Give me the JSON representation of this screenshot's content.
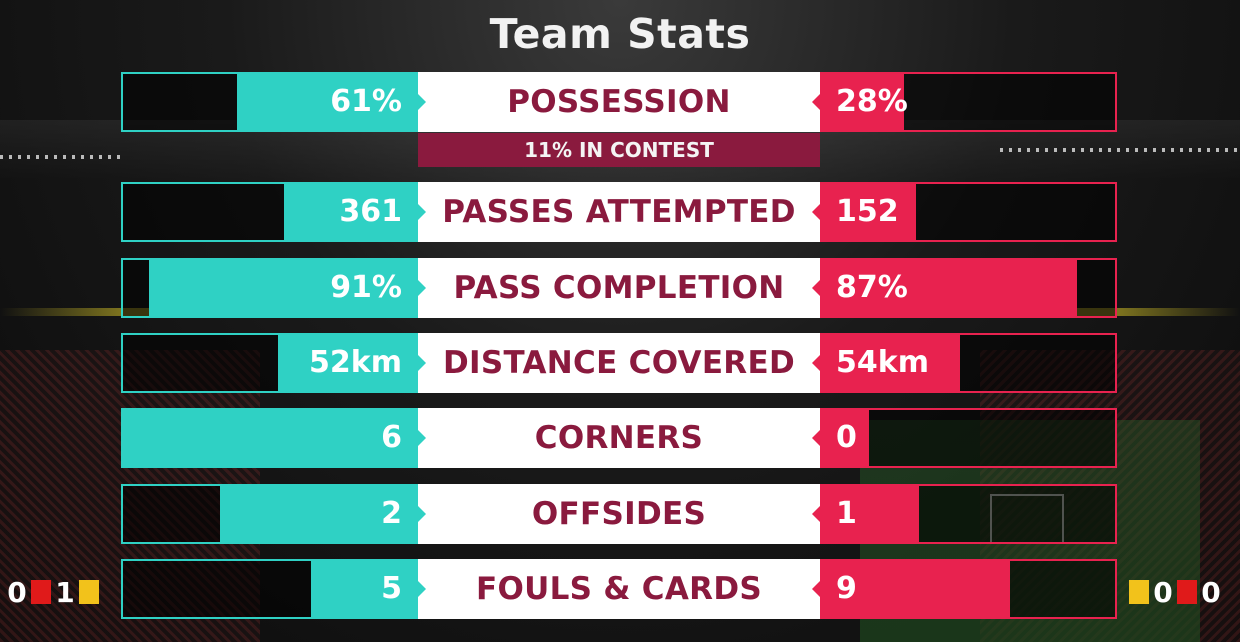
{
  "title": "Team Stats",
  "colors": {
    "home": "#2fd1c4",
    "away": "#e8224f",
    "label_text": "#8a1a3e",
    "contest_bg": "#8a1a3e"
  },
  "stats": [
    {
      "label": "POSSESSION",
      "home_value": "61%",
      "away_value": "28%",
      "home_fill": 0.61,
      "away_fill": 0.28
    },
    {
      "label": "PASSES ATTEMPTED",
      "home_value": "361",
      "away_value": "152",
      "home_fill": 0.45,
      "away_fill": 0.32
    },
    {
      "label": "PASS COMPLETION",
      "home_value": "91%",
      "away_value": "87%",
      "home_fill": 0.91,
      "away_fill": 0.87
    },
    {
      "label": "DISTANCE COVERED",
      "home_value": "52km",
      "away_value": "54km",
      "home_fill": 0.47,
      "away_fill": 0.47
    },
    {
      "label": "CORNERS",
      "home_value": "6",
      "away_value": "0",
      "home_fill": 1.0,
      "away_fill": 0.16
    },
    {
      "label": "OFFSIDES",
      "home_value": "2",
      "away_value": "1",
      "home_fill": 0.67,
      "away_fill": 0.33
    },
    {
      "label": "FOULS & CARDS",
      "home_value": "5",
      "away_value": "9",
      "home_fill": 0.36,
      "away_fill": 0.64
    }
  ],
  "possession_contest": "11% IN CONTEST",
  "cards": {
    "home": {
      "red": "0",
      "yellow": "1"
    },
    "away": {
      "yellow": "0",
      "red": "0"
    }
  }
}
